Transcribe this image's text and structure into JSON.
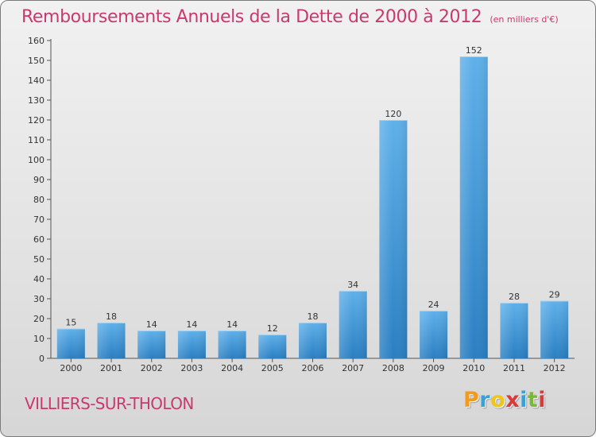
{
  "header": {
    "title": "Remboursements Annuels de la Dette de 2000 à 2012",
    "unit": "(en milliers d'€)"
  },
  "footer": {
    "commune": "VILLIERS-SUR-THOLON",
    "brand_letters": [
      "P",
      "r",
      "o",
      "x",
      "i",
      "t",
      "i"
    ],
    "brand_colors": [
      "#f39a1e",
      "#3aa0d8",
      "#f0c419",
      "#d93a3a",
      "#3aa0d8",
      "#7ab83a",
      "#d93a3a"
    ]
  },
  "colors": {
    "accent": "#c83a6e",
    "bar_light": "#5fb0ea",
    "bar_dark": "#2a7fc2"
  },
  "chart_data": {
    "type": "bar",
    "title": "Remboursements Annuels de la Dette de 2000 à 2012",
    "subtitle": "(en milliers d'€)",
    "xlabel": "",
    "ylabel": "",
    "categories": [
      "2000",
      "2001",
      "2002",
      "2003",
      "2004",
      "2005",
      "2006",
      "2007",
      "2008",
      "2009",
      "2010",
      "2011",
      "2012"
    ],
    "values": [
      15,
      18,
      14,
      14,
      14,
      12,
      18,
      34,
      120,
      24,
      152,
      28,
      29
    ],
    "ylim": [
      0,
      160
    ],
    "yticks": [
      0,
      10,
      20,
      30,
      40,
      50,
      60,
      70,
      80,
      90,
      100,
      110,
      120,
      130,
      140,
      150,
      160
    ],
    "grid": false,
    "legend": "none"
  }
}
